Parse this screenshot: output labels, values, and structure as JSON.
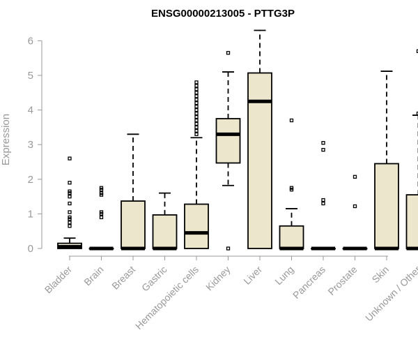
{
  "chart_data": {
    "type": "boxplot",
    "title": "ENSG00000213005 - PTTG3P",
    "ylabel": "Expression",
    "xlabel": "",
    "ylim": [
      0,
      6.2
    ],
    "yticks": [
      0,
      1,
      2,
      3,
      4,
      5,
      6
    ],
    "grid": false,
    "categories": [
      "Bladder",
      "Brain",
      "Breast",
      "Gastric",
      "Hematopoietic cells",
      "Kidney",
      "Liver",
      "Lung",
      "Pancreas",
      "Prostate",
      "Skin",
      "Unknown / Other"
    ],
    "boxes": [
      {
        "name": "Bladder",
        "lower_whisker": 0,
        "q1": 0,
        "median": 0.05,
        "q3": 0.15,
        "upper_whisker": 0.3,
        "outliers": [
          0.65,
          0.75,
          0.85,
          0.9,
          1.05,
          1.3,
          1.5,
          1.6,
          1.65,
          1.9,
          2.6
        ]
      },
      {
        "name": "Brain",
        "lower_whisker": 0,
        "q1": 0,
        "median": 0,
        "q3": 0,
        "upper_whisker": 0,
        "outliers": [
          0.9,
          1.0,
          1.05,
          1.55,
          1.6,
          1.7,
          1.75
        ]
      },
      {
        "name": "Breast",
        "lower_whisker": 0,
        "q1": 0,
        "median": 0,
        "q3": 1.37,
        "upper_whisker": 3.3,
        "outliers": []
      },
      {
        "name": "Gastric",
        "lower_whisker": 0,
        "q1": 0,
        "median": 0,
        "q3": 0.97,
        "upper_whisker": 1.6,
        "outliers": []
      },
      {
        "name": "Hematopoietic cells",
        "lower_whisker": 0,
        "q1": 0,
        "median": 0.45,
        "q3": 1.28,
        "upper_whisker": 3.2,
        "outliers": [
          3.3,
          3.4,
          3.5,
          3.6,
          3.7,
          3.8,
          3.9,
          4.0,
          4.1,
          4.2,
          4.3,
          4.4,
          4.5,
          4.6,
          4.7,
          4.8
        ]
      },
      {
        "name": "Kidney",
        "lower_whisker": 1.82,
        "q1": 2.47,
        "median": 3.3,
        "q3": 3.75,
        "upper_whisker": 5.1,
        "outliers": [
          0,
          5.65
        ]
      },
      {
        "name": "Liver",
        "lower_whisker": 0,
        "q1": 0,
        "median": 4.25,
        "q3": 5.07,
        "upper_whisker": 6.3,
        "outliers": []
      },
      {
        "name": "Lung",
        "lower_whisker": 0,
        "q1": 0,
        "median": 0,
        "q3": 0.65,
        "upper_whisker": 1.15,
        "outliers": [
          1.7,
          1.75,
          3.7
        ]
      },
      {
        "name": "Pancreas",
        "lower_whisker": 0,
        "q1": 0,
        "median": 0,
        "q3": 0,
        "upper_whisker": 0,
        "outliers": [
          1.3,
          1.4,
          2.85,
          3.05
        ]
      },
      {
        "name": "Prostate",
        "lower_whisker": 0,
        "q1": 0,
        "median": 0,
        "q3": 0,
        "upper_whisker": 0,
        "outliers": [
          1.22,
          2.07
        ]
      },
      {
        "name": "Skin",
        "lower_whisker": 0,
        "q1": 0,
        "median": 0,
        "q3": 2.45,
        "upper_whisker": 5.12,
        "outliers": []
      },
      {
        "name": "Unknown / Other",
        "lower_whisker": 0,
        "q1": 0,
        "median": 0,
        "q3": 1.55,
        "upper_whisker": 3.85,
        "outliers": [
          3.9,
          5.7
        ]
      }
    ],
    "colors": {
      "box_fill": "#ece6cc",
      "stroke": "#000000",
      "axis": "#999999"
    }
  }
}
